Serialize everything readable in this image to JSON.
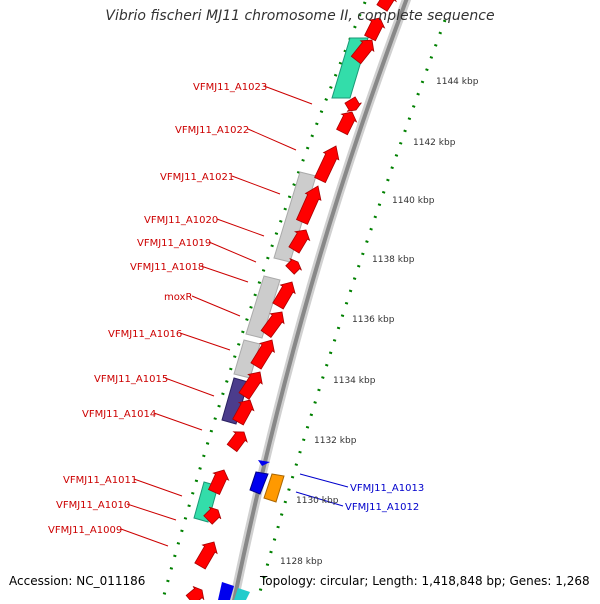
{
  "title": "Vibrio fischeri MJ11 chromosome II, complete sequence",
  "footer": {
    "accession": "Accession: NC_011186",
    "summary": "Topology: circular; Length: 1,418,848 bp; Genes: 1,268"
  },
  "colors": {
    "forward_cds": "#ff0000",
    "reverse_cds": "#0000ff",
    "label_forward": "#cc0000",
    "label_reverse": "#0000cc",
    "tick": "#008000",
    "gc_skew_green": "#33ddaa",
    "gray_feature": "#c8c8c8",
    "dark_feature": "#4b3c8c",
    "orange_feature": "#ff9900",
    "cyan_feature": "#22cccc",
    "backbone": "#888888"
  },
  "ruler": {
    "unit": "kbp",
    "ticks": [
      "1128 kbp",
      "1130 kbp",
      "1132 kbp",
      "1134 kbp",
      "1136 kbp",
      "1138 kbp",
      "1140 kbp",
      "1142 kbp",
      "1144 kbp"
    ]
  },
  "genes_left": [
    "VFMJ11_A1023",
    "VFMJ11_A1022",
    "VFMJ11_A1021",
    "VFMJ11_A1020",
    "VFMJ11_A1019",
    "VFMJ11_A1018",
    "moxR",
    "VFMJ11_A1016",
    "VFMJ11_A1015",
    "VFMJ11_A1014",
    "VFMJ11_A1011",
    "VFMJ11_A1010",
    "VFMJ11_A1009"
  ],
  "genes_right": [
    "VFMJ11_A1013",
    "VFMJ11_A1012"
  ]
}
